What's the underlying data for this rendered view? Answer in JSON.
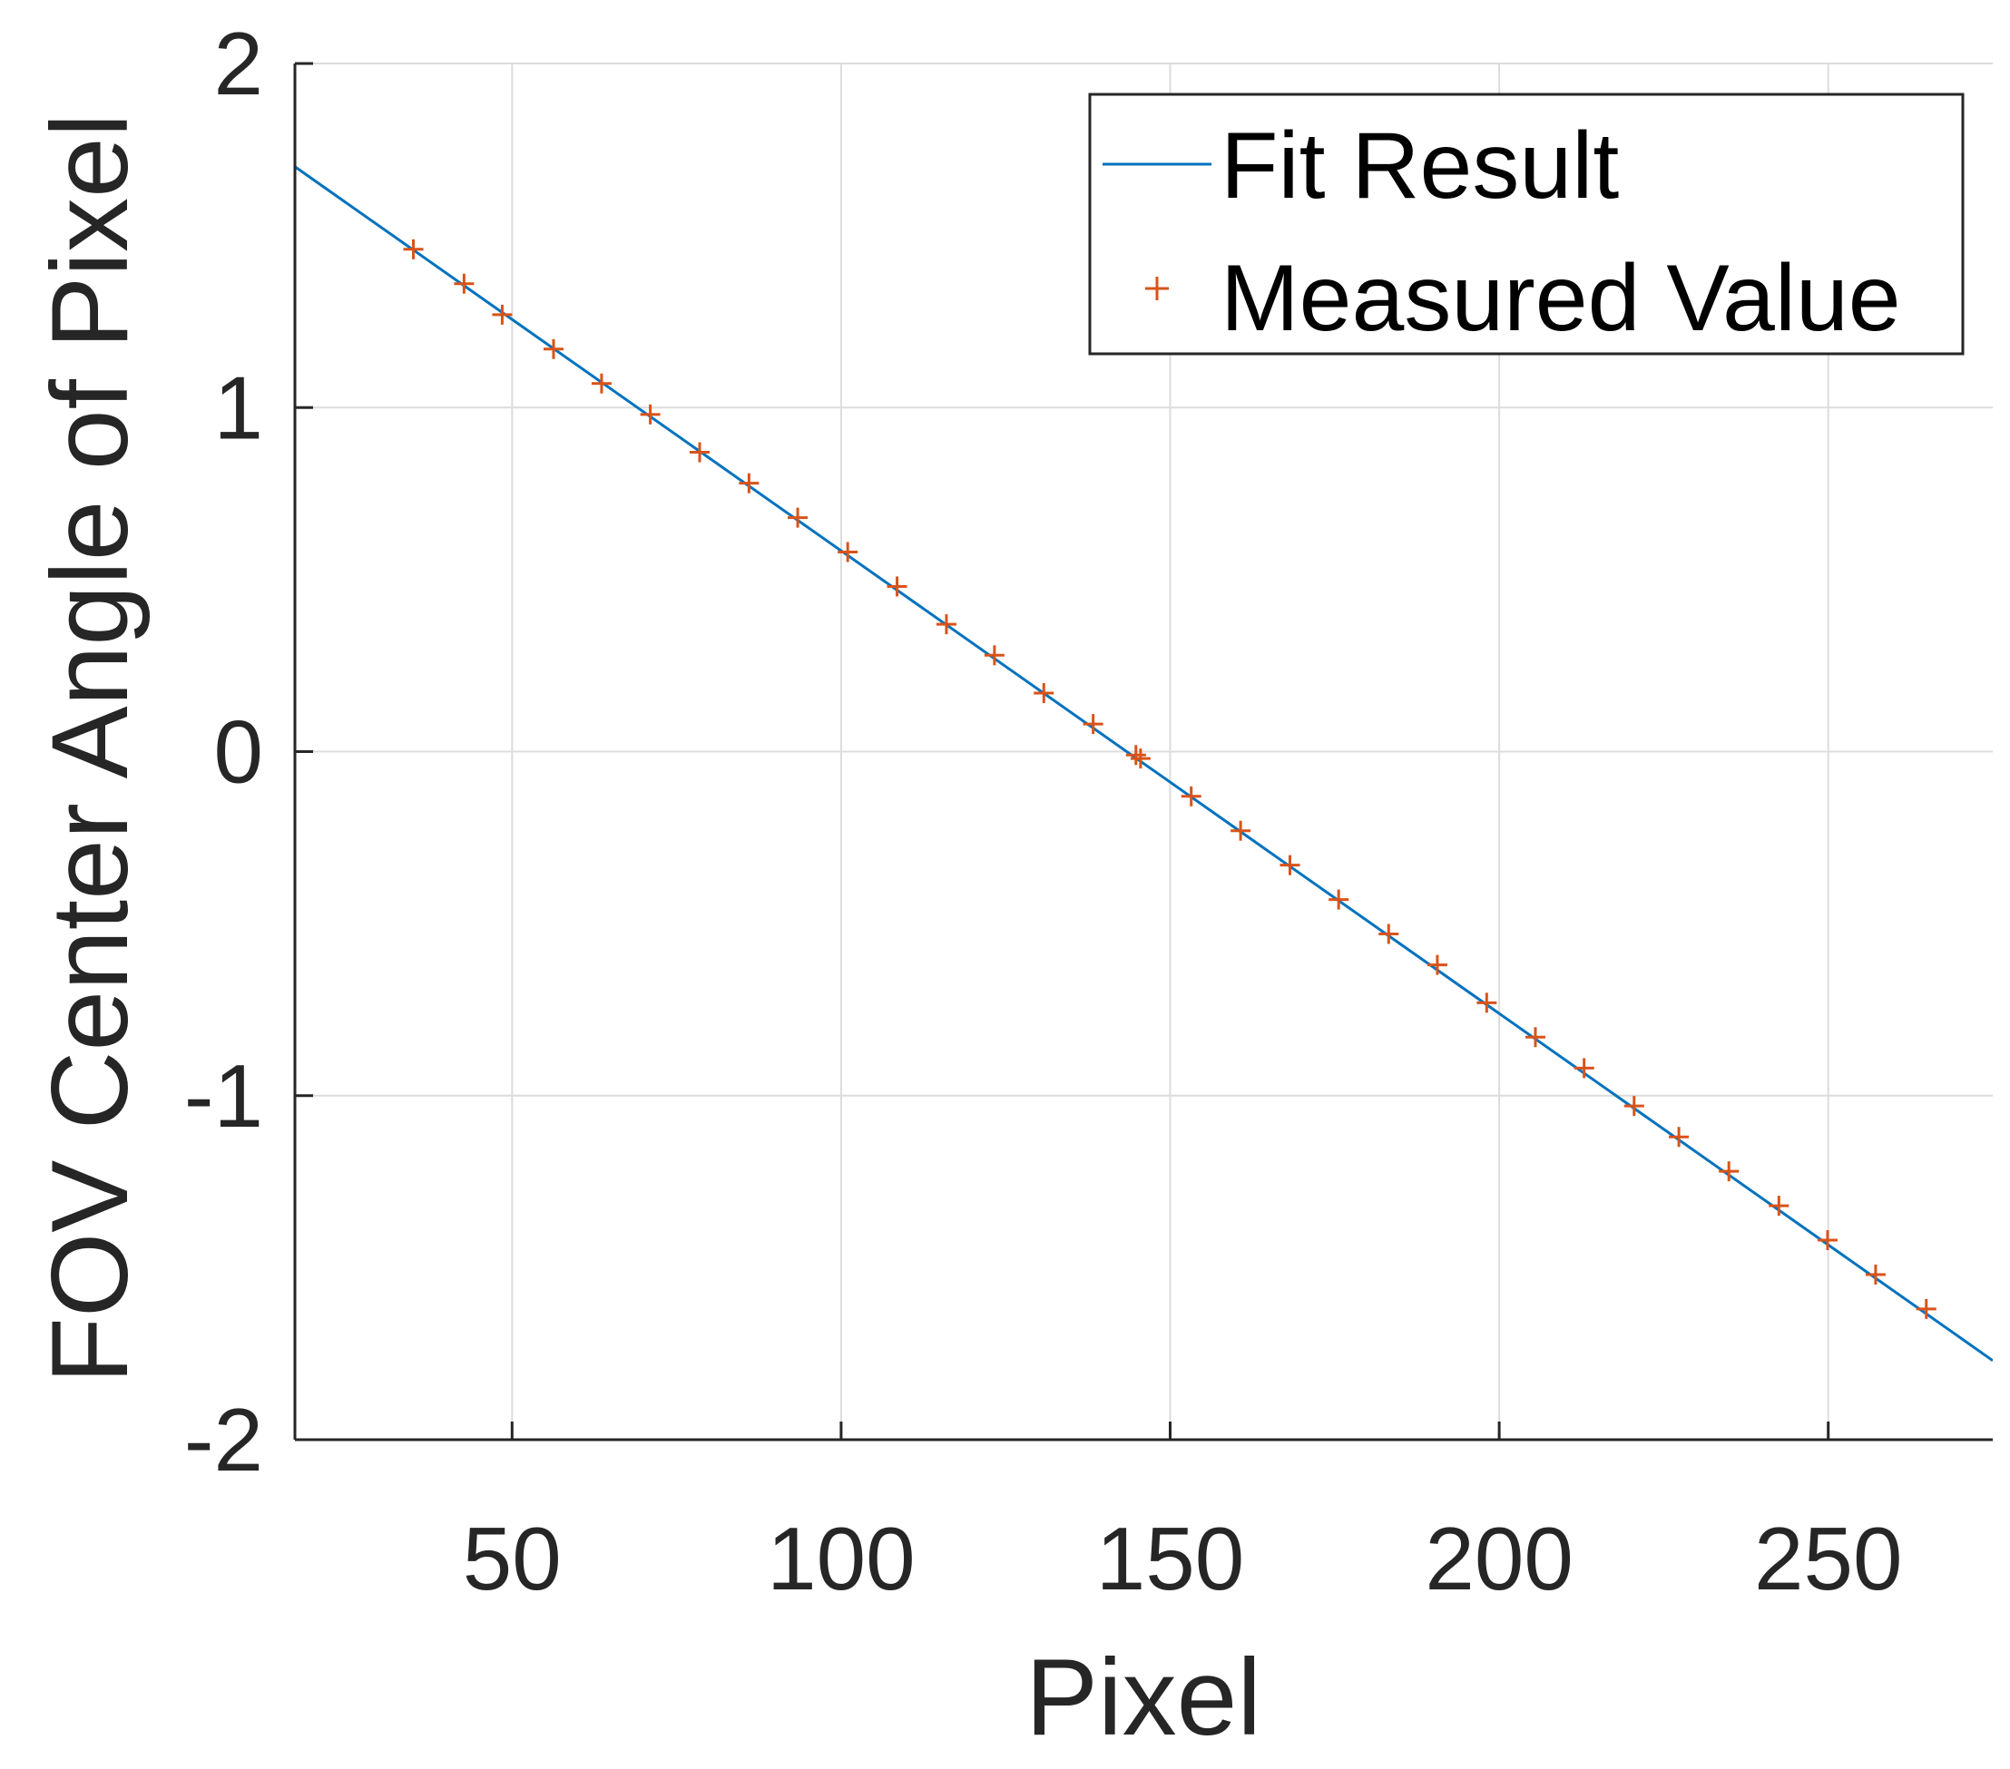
{
  "chart_data": {
    "type": "scatter",
    "xlabel": "Pixel",
    "ylabel": "FOV Center Angle of Pixel",
    "xlim": [
      17,
      275
    ],
    "ylim": [
      -2,
      2
    ],
    "xticks": [
      50,
      100,
      150,
      200,
      250
    ],
    "yticks": [
      -2,
      -1,
      0,
      1,
      2
    ],
    "xtick_labels": [
      "50",
      "100",
      "150",
      "200",
      "250"
    ],
    "ytick_labels": [
      "-2",
      "-1",
      "0",
      "1",
      "2"
    ],
    "grid": true,
    "legend_position": "top-right",
    "colors": {
      "fit": "#0072BD",
      "measured": "#D95319",
      "grid": "#dcdcdc",
      "axis": "#262626"
    },
    "series": [
      {
        "name": "Fit Result",
        "kind": "line",
        "x": [
          17,
          275
        ],
        "y": [
          1.7,
          -1.77
        ]
      },
      {
        "name": "Measured Value",
        "kind": "scatter",
        "marker": "+",
        "x": [
          35,
          42.7,
          48.5,
          56.3,
          63.6,
          71,
          78.5,
          86,
          93.4,
          101,
          108.5,
          116,
          123.3,
          130.8,
          138.3,
          144.8,
          145.5,
          153.2,
          160.7,
          168.2,
          175.6,
          183.2,
          190.6,
          198.1,
          205.5,
          212.9,
          220.5,
          227.3,
          234.9,
          242.5,
          249.9,
          257.2,
          264.9
        ],
        "y": [
          1.46,
          1.36,
          1.27,
          1.17,
          1.07,
          0.98,
          0.87,
          0.78,
          0.68,
          0.58,
          0.48,
          0.37,
          0.28,
          0.17,
          0.08,
          -0.01,
          -0.02,
          -0.13,
          -0.23,
          -0.33,
          -0.43,
          -0.53,
          -0.62,
          -0.73,
          -0.83,
          -0.92,
          -1.03,
          -1.12,
          -1.22,
          -1.32,
          -1.42,
          -1.52,
          -1.62
        ]
      }
    ]
  }
}
